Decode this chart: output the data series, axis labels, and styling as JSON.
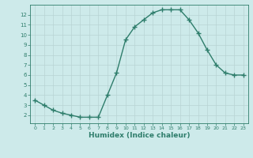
{
  "x": [
    0,
    1,
    2,
    3,
    4,
    5,
    6,
    7,
    8,
    9,
    10,
    11,
    12,
    13,
    14,
    15,
    16,
    17,
    18,
    19,
    20,
    21,
    22,
    23
  ],
  "y": [
    3.5,
    3.0,
    2.5,
    2.2,
    2.0,
    1.8,
    1.8,
    1.8,
    4.0,
    6.2,
    9.5,
    10.8,
    11.5,
    12.2,
    12.5,
    12.5,
    12.5,
    11.5,
    10.2,
    8.5,
    7.0,
    6.2,
    6.0,
    6.0
  ],
  "xlabel": "Humidex (Indice chaleur)",
  "xlim": [
    -0.5,
    23.5
  ],
  "ylim": [
    1.2,
    13.0
  ],
  "yticks": [
    2,
    3,
    4,
    5,
    6,
    7,
    8,
    9,
    10,
    11,
    12
  ],
  "xticks": [
    0,
    1,
    2,
    3,
    4,
    5,
    6,
    7,
    8,
    9,
    10,
    11,
    12,
    13,
    14,
    15,
    16,
    17,
    18,
    19,
    20,
    21,
    22,
    23
  ],
  "line_color": "#2e7d6b",
  "bg_color": "#cdeaea",
  "grid_color": "#b8d4d4",
  "marker": "+",
  "marker_size": 4,
  "linewidth": 1.0
}
